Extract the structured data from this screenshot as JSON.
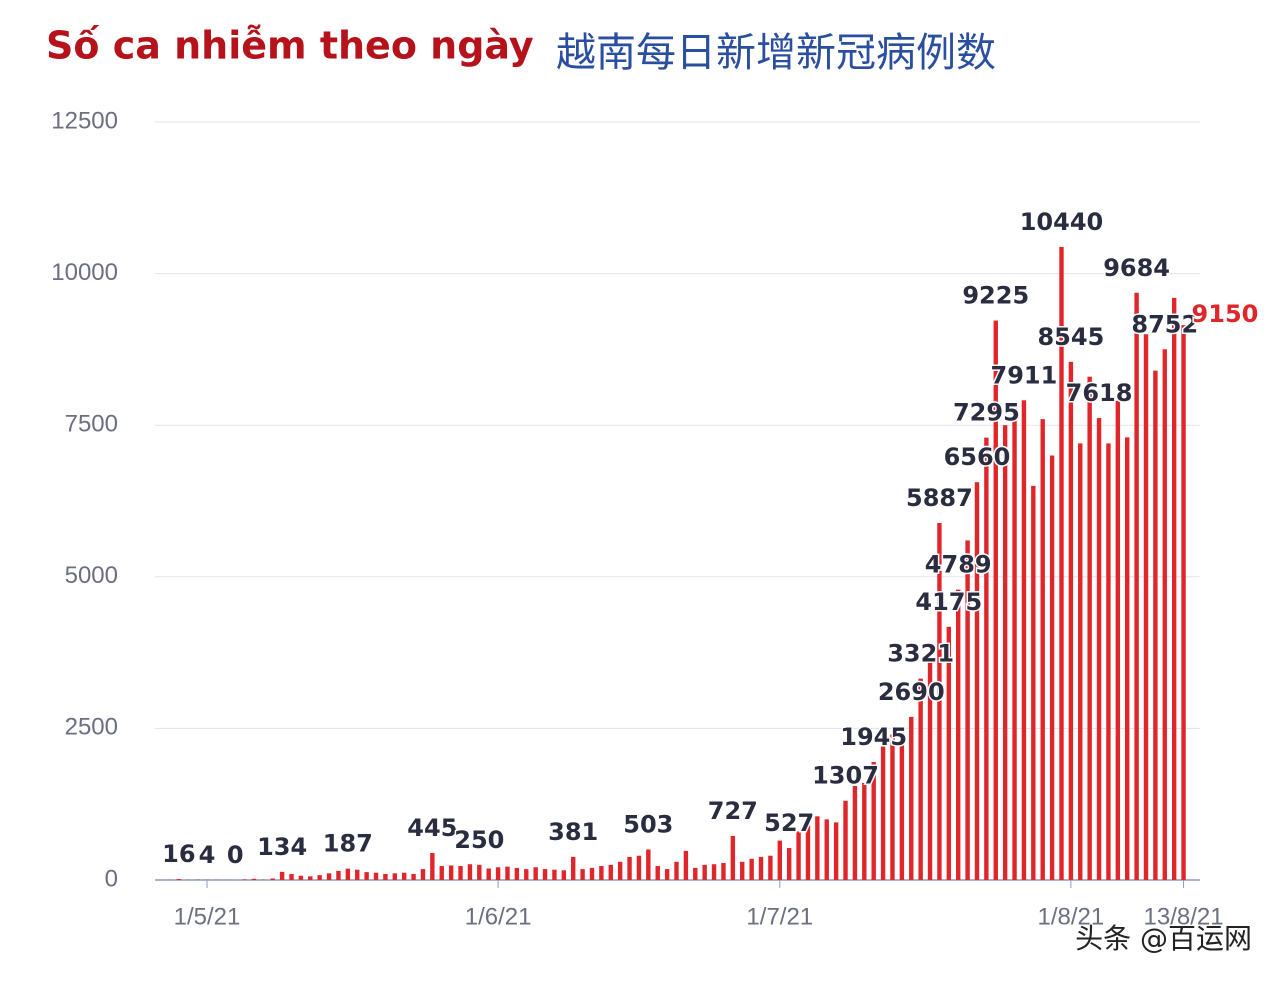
{
  "chart_data": {
    "type": "bar",
    "title": "Số ca nhiễm theo ngày",
    "subtitle": "越南每日新增新冠病例数",
    "watermark": "头条 @百运网",
    "color": "#e0262b",
    "label_color": "#2a2c40",
    "last_label_color": "#e0262b",
    "grid": true,
    "ylim": [
      0,
      12500
    ],
    "yticks": [
      0,
      2500,
      5000,
      7500,
      10000,
      12500
    ],
    "categories": [
      null,
      null,
      null,
      null,
      "1/5/21",
      null,
      null,
      null,
      null,
      null,
      null,
      null,
      null,
      null,
      null,
      null,
      null,
      null,
      null,
      null,
      null,
      null,
      null,
      null,
      null,
      null,
      null,
      null,
      null,
      null,
      null,
      null,
      null,
      null,
      null,
      "1/6/21",
      null,
      null,
      null,
      null,
      null,
      null,
      null,
      null,
      null,
      null,
      null,
      null,
      null,
      null,
      null,
      null,
      null,
      null,
      null,
      null,
      null,
      null,
      null,
      null,
      null,
      null,
      null,
      null,
      null,
      "1/7/21",
      null,
      null,
      null,
      null,
      null,
      null,
      null,
      null,
      null,
      null,
      null,
      null,
      null,
      null,
      null,
      null,
      null,
      null,
      null,
      null,
      null,
      null,
      null,
      null,
      null,
      null,
      null,
      null,
      null,
      null,
      "1/8/21",
      null,
      null,
      null,
      null,
      null,
      null,
      null,
      null,
      null,
      null,
      null,
      "13/8/21"
    ],
    "values": [
      2,
      16,
      3,
      5,
      4,
      2,
      1,
      0,
      10,
      20,
      5,
      25,
      134,
      100,
      70,
      60,
      80,
      110,
      150,
      187,
      170,
      130,
      120,
      100,
      110,
      120,
      100,
      180,
      445,
      230,
      240,
      230,
      260,
      250,
      190,
      210,
      220,
      200,
      180,
      210,
      180,
      170,
      160,
      381,
      180,
      200,
      230,
      250,
      300,
      380,
      400,
      503,
      230,
      180,
      300,
      480,
      200,
      250,
      260,
      280,
      727,
      300,
      350,
      380,
      400,
      650,
      527,
      800,
      900,
      1050,
      1000,
      950,
      1307,
      1550,
      1600,
      1945,
      2200,
      2400,
      2500,
      2690,
      3321,
      3600,
      5887,
      4175,
      4789,
      5600,
      6560,
      7295,
      9225,
      7500,
      7800,
      7911,
      6500,
      7600,
      7000,
      10440,
      8545,
      7200,
      8300,
      7618,
      7200,
      7900,
      7300,
      9684,
      9000,
      8400,
      8752,
      9600,
      9150
    ],
    "value_labels": [
      null,
      "16",
      null,
      null,
      "4",
      null,
      null,
      "0",
      null,
      null,
      null,
      null,
      "134",
      null,
      null,
      null,
      null,
      null,
      null,
      "187",
      null,
      null,
      null,
      null,
      null,
      null,
      null,
      null,
      "445",
      null,
      null,
      null,
      null,
      "250",
      null,
      null,
      null,
      null,
      null,
      null,
      null,
      null,
      null,
      "381",
      null,
      null,
      null,
      null,
      null,
      null,
      null,
      "503",
      null,
      null,
      null,
      null,
      null,
      null,
      null,
      null,
      "727",
      null,
      null,
      null,
      null,
      null,
      "527",
      null,
      null,
      null,
      null,
      null,
      "1307",
      null,
      null,
      "1945",
      null,
      null,
      null,
      "2690",
      "3321",
      null,
      "5887",
      "4175",
      "4789",
      null,
      "6560",
      "7295",
      "9225",
      null,
      null,
      "7911",
      null,
      null,
      null,
      "10440",
      "8545",
      null,
      null,
      "7618",
      null,
      null,
      null,
      "9684",
      null,
      null,
      "8752",
      null,
      "9150"
    ]
  }
}
